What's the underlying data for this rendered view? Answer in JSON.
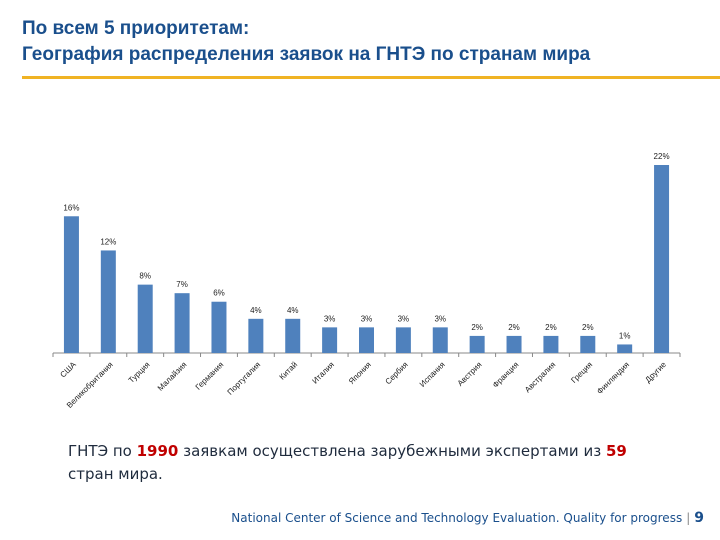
{
  "slide": {
    "title_line1": "По всем 5 приоритетам:",
    "title_line2": "География распределения заявок на ГНТЭ по странам мира",
    "note": {
      "part1": "ГНТЭ по ",
      "count_applications": "1990",
      "part2": " заявкам осуществлена зарубежными экспертами из ",
      "count_countries": "59",
      "part3": " стран мира."
    },
    "footer": {
      "text": "National Center of Science and Technology Evaluation. Quality for progress",
      "separator": "|",
      "page_number": "9"
    }
  },
  "colors": {
    "bar": "#4f81bd",
    "title": "#1a4f8c",
    "accent_rule": "#f0b323",
    "highlight": "#c00000"
  },
  "chart_data": {
    "type": "bar",
    "title": "",
    "xlabel": "",
    "ylabel": "",
    "unit": "%",
    "ylim": [
      0,
      22
    ],
    "grid": false,
    "categories": [
      "США",
      "Великобритания",
      "Турция",
      "Малайзия",
      "Германия",
      "Португалия",
      "Китай",
      "Италия",
      "Япония",
      "Сербия",
      "Испания",
      "Австрия",
      "Франция",
      "Австралия",
      "Греция",
      "Финляндия",
      "Другие"
    ],
    "values": [
      16,
      12,
      8,
      7,
      6,
      4,
      4,
      3,
      3,
      3,
      3,
      2,
      2,
      2,
      2,
      1,
      22
    ],
    "labels": [
      "16%",
      "12%",
      "8%",
      "7%",
      "6%",
      "4%",
      "4%",
      "3%",
      "3%",
      "3%",
      "3%",
      "2%",
      "2%",
      "2%",
      "2%",
      "1%",
      "22%"
    ]
  }
}
